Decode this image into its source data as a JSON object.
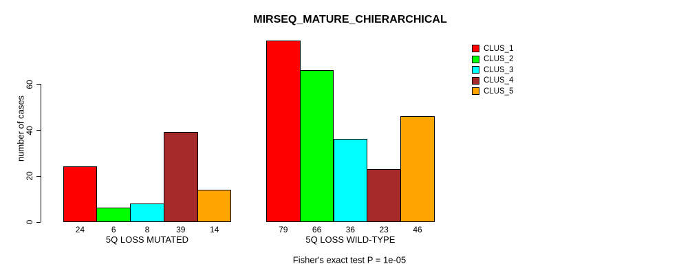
{
  "chart_data": {
    "type": "bar",
    "title": "MIRSEQ_MATURE_CHIERARCHICAL",
    "ylabel": "number of cases",
    "xlabel": "",
    "categories": [
      "5Q LOSS MUTATED",
      "5Q LOSS WILD-TYPE"
    ],
    "series": [
      {
        "name": "CLUS_1",
        "color": "#FF0000",
        "values": [
          24,
          79
        ]
      },
      {
        "name": "CLUS_2",
        "color": "#00FF00",
        "values": [
          6,
          66
        ]
      },
      {
        "name": "CLUS_3",
        "color": "#00FFFF",
        "values": [
          8,
          36
        ]
      },
      {
        "name": "CLUS_4",
        "color": "#A52A2A",
        "values": [
          39,
          23
        ]
      },
      {
        "name": "CLUS_5",
        "color": "#FFA500",
        "values": [
          14,
          46
        ]
      }
    ],
    "yticks": [
      0,
      20,
      40,
      60
    ],
    "ylim": [
      0,
      79
    ],
    "grid": false,
    "legend_position": "top-right",
    "bar_value_labels": true,
    "annotation": "Fisher's exact test P = 1e-05"
  }
}
